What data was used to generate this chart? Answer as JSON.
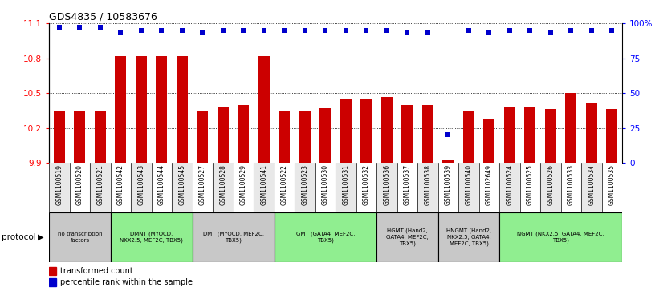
{
  "title": "GDS4835 / 10583676",
  "samples": [
    "GSM1100519",
    "GSM1100520",
    "GSM1100521",
    "GSM1100542",
    "GSM1100543",
    "GSM1100544",
    "GSM1100545",
    "GSM1100527",
    "GSM1100528",
    "GSM1100529",
    "GSM1100541",
    "GSM1100522",
    "GSM1100523",
    "GSM1100530",
    "GSM1100531",
    "GSM1100532",
    "GSM1100536",
    "GSM1100537",
    "GSM1100538",
    "GSM1100539",
    "GSM1100540",
    "GSM1102649",
    "GSM1100524",
    "GSM1100525",
    "GSM1100526",
    "GSM1100533",
    "GSM1100534",
    "GSM1100535"
  ],
  "bar_values": [
    10.35,
    10.35,
    10.35,
    10.82,
    10.82,
    10.82,
    10.82,
    10.35,
    10.38,
    10.4,
    10.82,
    10.35,
    10.35,
    10.37,
    10.45,
    10.45,
    10.47,
    10.4,
    10.4,
    9.92,
    10.35,
    10.28,
    10.38,
    10.38,
    10.36,
    10.5,
    10.42,
    10.36
  ],
  "percentile_values": [
    97,
    97,
    97,
    93,
    95,
    95,
    95,
    93,
    95,
    95,
    95,
    95,
    95,
    95,
    95,
    95,
    95,
    93,
    93,
    20,
    95,
    93,
    95,
    95,
    93,
    95,
    95,
    95
  ],
  "ylim_left": [
    9.9,
    11.1
  ],
  "ylim_right": [
    0,
    100
  ],
  "yticks_left": [
    9.9,
    10.2,
    10.5,
    10.8,
    11.1
  ],
  "yticks_right": [
    0,
    25,
    50,
    75,
    100
  ],
  "ytick_labels_right": [
    "0",
    "25",
    "50",
    "75",
    "100%"
  ],
  "bar_color": "#CC0000",
  "dot_color": "#0000CC",
  "protocol_groups": [
    {
      "label": "no transcription\nfactors",
      "start": 0,
      "end": 3,
      "color": "#c8c8c8"
    },
    {
      "label": "DMNT (MYOCD,\nNKX2.5, MEF2C, TBX5)",
      "start": 3,
      "end": 7,
      "color": "#90ee90"
    },
    {
      "label": "DMT (MYOCD, MEF2C,\nTBX5)",
      "start": 7,
      "end": 11,
      "color": "#c8c8c8"
    },
    {
      "label": "GMT (GATA4, MEF2C,\nTBX5)",
      "start": 11,
      "end": 16,
      "color": "#90ee90"
    },
    {
      "label": "HGMT (Hand2,\nGATA4, MEF2C,\nTBX5)",
      "start": 16,
      "end": 19,
      "color": "#c8c8c8"
    },
    {
      "label": "HNGMT (Hand2,\nNKX2.5, GATA4,\nMEF2C, TBX5)",
      "start": 19,
      "end": 22,
      "color": "#c8c8c8"
    },
    {
      "label": "NGMT (NKX2.5, GATA4, MEF2C,\nTBX5)",
      "start": 22,
      "end": 28,
      "color": "#90ee90"
    }
  ],
  "legend_bar_label": "transformed count",
  "legend_dot_label": "percentile rank within the sample",
  "protocol_label": "protocol"
}
